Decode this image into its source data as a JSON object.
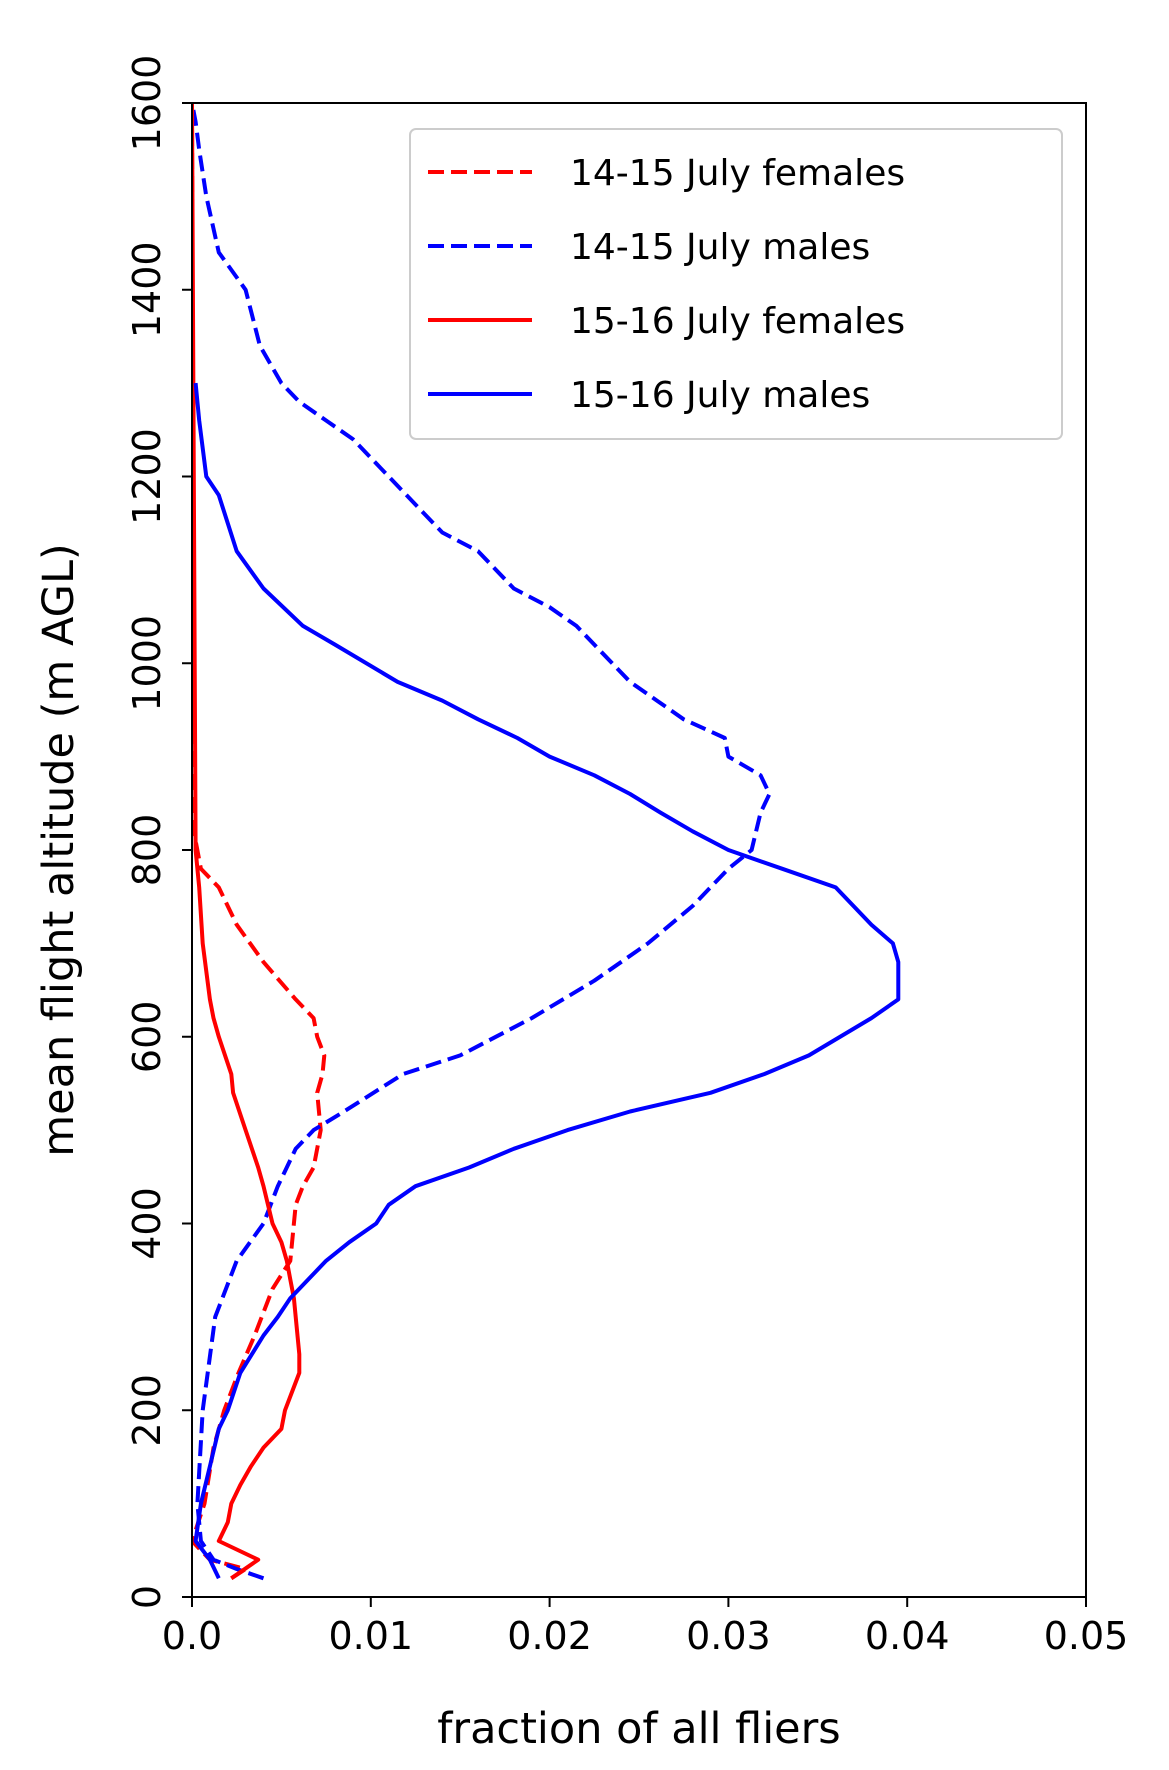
{
  "chart_data": {
    "type": "line",
    "title": "",
    "xlabel": "fraction of all fliers",
    "ylabel": "mean flight altitude (m AGL)",
    "xlim": [
      0.0,
      0.05
    ],
    "ylim": [
      0,
      1600
    ],
    "x_ticks": [
      0.0,
      0.01,
      0.02,
      0.03,
      0.04,
      0.05
    ],
    "x_tick_labels": [
      "0.0",
      "0.01",
      "0.02",
      "0.03",
      "0.04",
      "0.05"
    ],
    "y_ticks": [
      0,
      200,
      400,
      600,
      800,
      1000,
      1200,
      1400,
      1600
    ],
    "y_tick_labels": [
      "0",
      "200",
      "400",
      "600",
      "800",
      "1000",
      "1200",
      "1400",
      "1600"
    ],
    "grid": false,
    "legend_position": "top-right",
    "series": [
      {
        "name": "14-15 July females",
        "color": "#ff0000",
        "linestyle": "dashed",
        "x": [
          0.0022,
          0.003,
          0.001,
          0.0,
          0.0007,
          0.0012,
          0.0018,
          0.0026,
          0.0035,
          0.0045,
          0.0055,
          0.0058,
          0.0062,
          0.0068,
          0.0072,
          0.007,
          0.0073,
          0.0074,
          0.007,
          0.0068,
          0.0058,
          0.004,
          0.0025,
          0.0015,
          0.0005,
          0.0001,
          0.0
        ],
        "y": [
          20,
          30,
          40,
          60,
          100,
          160,
          200,
          240,
          280,
          330,
          360,
          420,
          440,
          460,
          500,
          540,
          560,
          580,
          600,
          620,
          640,
          680,
          720,
          760,
          780,
          820,
          1600
        ]
      },
      {
        "name": "14-15 July males",
        "color": "#0000ff",
        "linestyle": "dashed",
        "x": [
          0.004,
          0.0025,
          0.0012,
          0.0005,
          0.0003,
          0.0006,
          0.0013,
          0.0025,
          0.004,
          0.0048,
          0.0058,
          0.0068,
          0.0085,
          0.0118,
          0.015,
          0.019,
          0.0225,
          0.0255,
          0.028,
          0.03,
          0.0313,
          0.0318,
          0.0323,
          0.0318,
          0.03,
          0.0298,
          0.0275,
          0.026,
          0.0245,
          0.0235,
          0.0215,
          0.02,
          0.018,
          0.016,
          0.014,
          0.013,
          0.011,
          0.009,
          0.0075,
          0.006,
          0.005,
          0.0038,
          0.003,
          0.0015,
          0.0008,
          0.0004,
          0.0002,
          0.0
        ],
        "y": [
          20,
          30,
          40,
          60,
          100,
          200,
          300,
          360,
          400,
          440,
          480,
          500,
          520,
          560,
          580,
          620,
          660,
          700,
          740,
          780,
          800,
          840,
          860,
          880,
          900,
          920,
          940,
          960,
          980,
          1000,
          1040,
          1060,
          1080,
          1120,
          1140,
          1160,
          1200,
          1240,
          1260,
          1280,
          1300,
          1340,
          1400,
          1440,
          1500,
          1550,
          1580,
          1600
        ]
      },
      {
        "name": "15-16 July females",
        "color": "#ff0000",
        "linestyle": "solid",
        "x": [
          0.0022,
          0.0037,
          0.0015,
          0.002,
          0.0022,
          0.0027,
          0.0033,
          0.004,
          0.005,
          0.0052,
          0.006,
          0.006,
          0.0058,
          0.0057,
          0.0055,
          0.0053,
          0.005,
          0.0045,
          0.004,
          0.0037,
          0.003,
          0.0023,
          0.0022,
          0.0015,
          0.0012,
          0.001,
          0.0006,
          0.0004,
          0.0002,
          0.0
        ],
        "y": [
          20,
          40,
          60,
          80,
          100,
          120,
          140,
          160,
          180,
          200,
          240,
          260,
          300,
          320,
          340,
          360,
          380,
          400,
          440,
          460,
          500,
          540,
          560,
          600,
          620,
          640,
          700,
          760,
          800,
          1600
        ]
      },
      {
        "name": "15-16 July males",
        "color": "#0000ff",
        "linestyle": "solid",
        "x": [
          0.0015,
          0.001,
          0.0002,
          0.0005,
          0.001,
          0.0015,
          0.002,
          0.0027,
          0.004,
          0.0048,
          0.0055,
          0.0065,
          0.0075,
          0.0088,
          0.0103,
          0.011,
          0.0125,
          0.0155,
          0.018,
          0.021,
          0.0245,
          0.029,
          0.032,
          0.0345,
          0.038,
          0.0395,
          0.0395,
          0.0395,
          0.0392,
          0.038,
          0.036,
          0.033,
          0.03,
          0.028,
          0.0262,
          0.0245,
          0.0225,
          0.02,
          0.0182,
          0.016,
          0.014,
          0.0115,
          0.008,
          0.0062,
          0.004,
          0.0025,
          0.0015,
          0.0008,
          0.0004,
          0.0002
        ],
        "y": [
          20,
          40,
          60,
          100,
          140,
          180,
          200,
          240,
          280,
          300,
          320,
          340,
          360,
          380,
          400,
          420,
          440,
          460,
          480,
          500,
          520,
          540,
          560,
          580,
          620,
          640,
          660,
          680,
          700,
          720,
          760,
          780,
          800,
          820,
          840,
          860,
          880,
          900,
          920,
          940,
          960,
          980,
          1020,
          1040,
          1080,
          1120,
          1180,
          1200,
          1260,
          1300
        ]
      }
    ]
  }
}
